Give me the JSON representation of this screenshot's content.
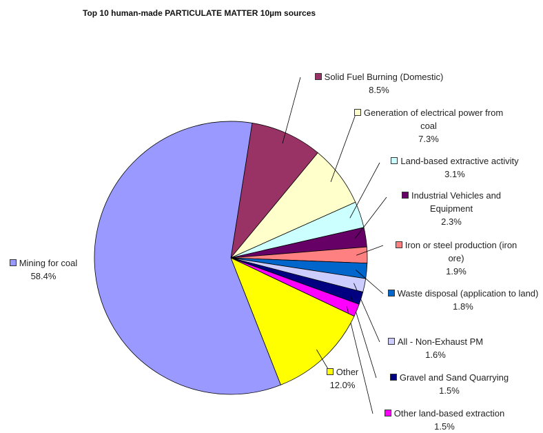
{
  "chart_data": {
    "type": "pie",
    "title": "Top 10 human-made PARTICULATE MATTER 10µm sources",
    "categories": [
      "Solid Fuel Burning (Domestic)",
      "Generation of electrical power from coal",
      "Land-based extractive activity",
      "Industrial Vehicles and Equipment",
      "Iron or steel production (iron ore)",
      "Waste disposal (application to land)",
      "All - Non-Exhaust PM",
      "Gravel and Sand Quarrying",
      "Other land-based extraction",
      "Other",
      "Mining for coal"
    ],
    "values": [
      8.5,
      7.3,
      3.1,
      2.3,
      1.9,
      1.8,
      1.6,
      1.5,
      1.5,
      12.0,
      58.4
    ],
    "value_labels": [
      "8.5%",
      "7.3%",
      "3.1%",
      "2.3%",
      "1.9%",
      "1.8%",
      "1.6%",
      "1.5%",
      "1.5%",
      "12.0%",
      "58.4%"
    ],
    "colors": [
      "#993366",
      "#FFFFCC",
      "#CCFFFF",
      "#660066",
      "#FF8080",
      "#0066CC",
      "#CCCCFF",
      "#000080",
      "#FF00FF",
      "#FFFF00",
      "#9999FF"
    ]
  }
}
